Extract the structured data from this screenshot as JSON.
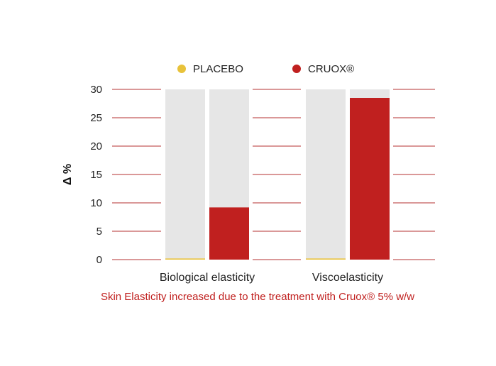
{
  "chart_data": {
    "type": "bar",
    "categories": [
      "Biological elasticity",
      "Viscoelasticity"
    ],
    "series": [
      {
        "name": "PLACEBO",
        "color": "#e8c23a",
        "values": [
          0.2,
          0.2
        ]
      },
      {
        "name": "CRUOX®",
        "color": "#c0201f",
        "values": [
          9.2,
          28.5
        ]
      }
    ],
    "background_bar_color": "#e6e6e6",
    "gridline_color": "#b53030",
    "ylabel": "Δ %",
    "ylim": [
      0,
      30
    ],
    "yticks": [
      0,
      5,
      10,
      15,
      20,
      25,
      30
    ],
    "legend_position": "top-center",
    "caption": "Skin Elasticity increased due to the treatment with Cruox® 5% w/w"
  }
}
